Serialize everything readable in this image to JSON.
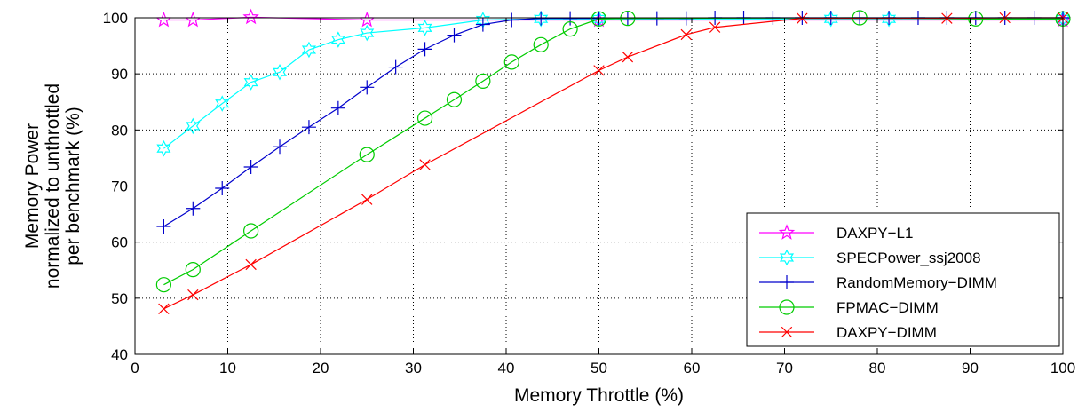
{
  "chart_data": {
    "type": "line",
    "xlabel": "Memory Throttle (%)",
    "ylabel_lines": [
      "Memory Power",
      "normalized to unthrottled",
      "per benchmark (%)"
    ],
    "xlim": [
      0,
      100
    ],
    "ylim": [
      40,
      100
    ],
    "xticks": [
      0,
      10,
      20,
      30,
      40,
      50,
      60,
      70,
      80,
      90,
      100
    ],
    "yticks": [
      40,
      50,
      60,
      70,
      80,
      90,
      100
    ],
    "grid": true,
    "legend_position": "lower-right",
    "series": [
      {
        "name": "DAXPY−L1",
        "color": "#ff00ff",
        "marker": "star5",
        "x": [
          3.1,
          6.25,
          12.5,
          25,
          50,
          100
        ],
        "y": [
          99.6,
          99.6,
          100.1,
          99.6,
          99.6,
          99.6
        ]
      },
      {
        "name": "SPECPower_ssj2008",
        "color": "#00ffff",
        "marker": "star6",
        "x": [
          3.1,
          6.25,
          9.4,
          12.5,
          15.6,
          18.75,
          21.9,
          25,
          31.25,
          37.5,
          43.75,
          50,
          75,
          81.25,
          100
        ],
        "y": [
          76.7,
          80.7,
          84.7,
          88.5,
          90.3,
          94.3,
          96.1,
          97.3,
          98.2,
          99.6,
          99.8,
          99.8,
          99.8,
          99.8,
          99.8
        ]
      },
      {
        "name": "RandomMemory−DIMM",
        "color": "#0000cc",
        "marker": "plus",
        "x": [
          3.1,
          6.25,
          9.4,
          12.5,
          15.6,
          18.75,
          21.9,
          25,
          28.1,
          31.25,
          34.4,
          37.5,
          40.6,
          43.75,
          46.9,
          50,
          53.1,
          56.25,
          59.4,
          62.5,
          65.6,
          68.75,
          71.9,
          75,
          78.1,
          81.25,
          84.4,
          87.5,
          90.6,
          93.75,
          96.9,
          100
        ],
        "y": [
          62.8,
          66,
          69.6,
          73.4,
          77,
          80.5,
          83.9,
          87.6,
          91.2,
          94.4,
          96.9,
          98.8,
          99.6,
          99.9,
          99.9,
          99.9,
          99.9,
          99.9,
          99.9,
          100,
          100,
          100,
          100,
          100,
          100,
          100,
          100,
          100,
          100,
          100,
          100,
          100
        ]
      },
      {
        "name": "FPMAC−DIMM",
        "color": "#00cc00",
        "marker": "circle",
        "x": [
          3.1,
          6.25,
          12.5,
          25,
          31.25,
          34.4,
          37.5,
          40.6,
          43.75,
          46.9,
          50,
          53.1,
          78.1,
          90.6,
          100
        ],
        "y": [
          52.4,
          55.1,
          62,
          75.6,
          82.1,
          85.4,
          88.7,
          92.1,
          95.2,
          98,
          99.8,
          99.9,
          100,
          99.8,
          99.8
        ]
      },
      {
        "name": "DAXPY−DIMM",
        "color": "#ff0000",
        "marker": "x",
        "x": [
          3.1,
          6.25,
          12.5,
          25,
          31.25,
          50,
          53.1,
          59.4,
          62.5,
          71.9,
          87.5,
          93.75,
          100
        ],
        "y": [
          48.1,
          50.6,
          56,
          67.6,
          73.8,
          90.6,
          93,
          97,
          98.3,
          99.9,
          99.9,
          100,
          100
        ]
      }
    ]
  }
}
